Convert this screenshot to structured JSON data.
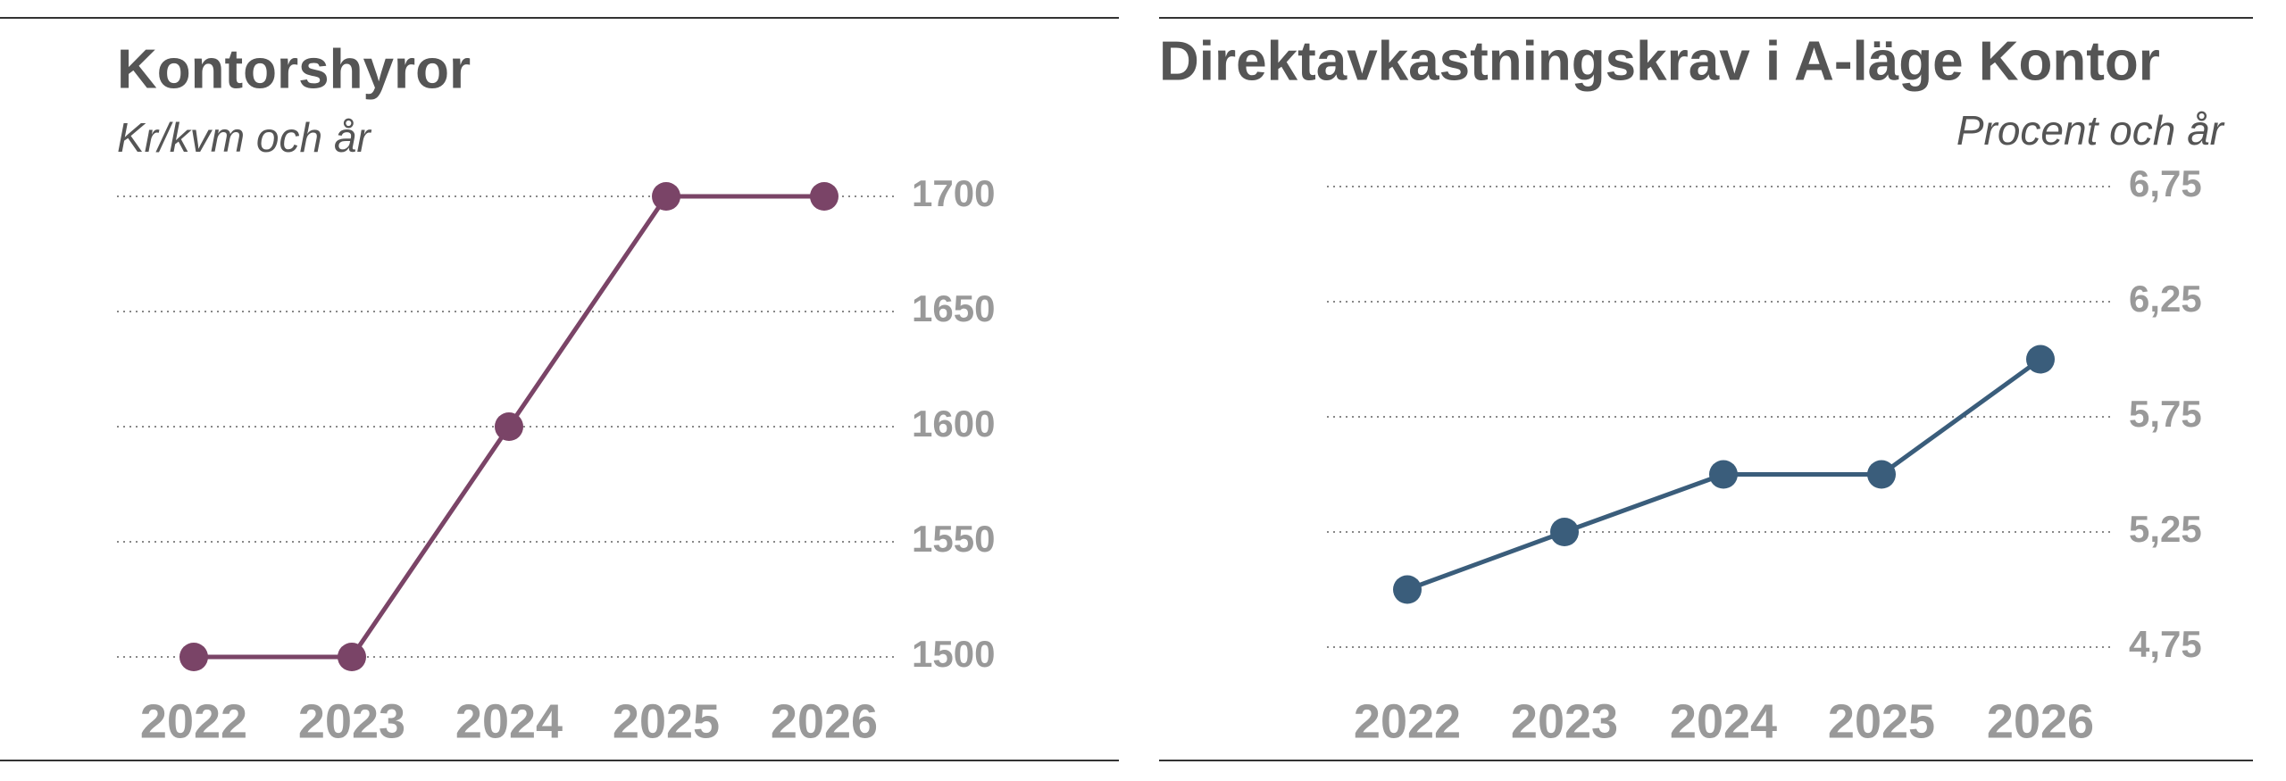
{
  "chart_data": [
    {
      "type": "line",
      "title": "Kontorshyror",
      "subtitle": "Kr/kvm och år",
      "categories": [
        "2022",
        "2023",
        "2024",
        "2025",
        "2026"
      ],
      "values": [
        1500,
        1500,
        1600,
        1700,
        1700
      ],
      "color": "#7a4467",
      "ylim": [
        1500,
        1700
      ],
      "yticks": [
        1500,
        1550,
        1600,
        1650,
        1700
      ],
      "grid": true
    },
    {
      "type": "line",
      "title": "Direktavkastningskrav i A-läge Kontor",
      "subtitle": "Procent och år",
      "categories": [
        "2022",
        "2023",
        "2024",
        "2025",
        "2026"
      ],
      "values": [
        5.0,
        5.25,
        5.5,
        5.5,
        6.0
      ],
      "color": "#3a5d7b",
      "ylim": [
        4.75,
        6.75
      ],
      "yticks": [
        {
          "value": 4.75,
          "label": "4,75"
        },
        {
          "value": 5.25,
          "label": "5,25"
        },
        {
          "value": 5.75,
          "label": "5,75"
        },
        {
          "value": 6.25,
          "label": "6,25"
        },
        {
          "value": 6.75,
          "label": "6,75"
        }
      ],
      "grid": true
    }
  ]
}
